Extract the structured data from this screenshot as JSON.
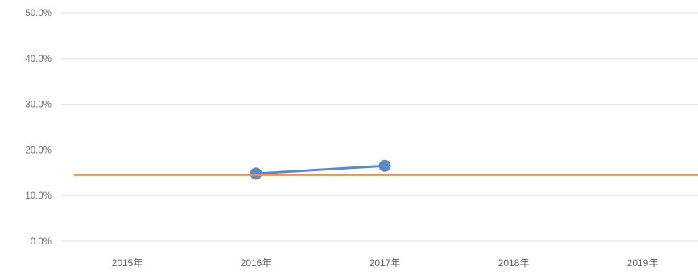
{
  "chart_data": {
    "type": "line",
    "title": "",
    "xlabel": "",
    "ylabel": "",
    "categories": [
      "2015年",
      "2016年",
      "2017年",
      "2018年",
      "2019年"
    ],
    "y_ticks": [
      "0.0%",
      "10.0%",
      "20.0%",
      "30.0%",
      "40.0%",
      "50.0%"
    ],
    "ylim": [
      0,
      50
    ],
    "grid": true,
    "legend": "none",
    "series": [
      {
        "values": [
          null,
          14.8,
          16.5,
          null,
          null
        ],
        "color": "#5b8ac6",
        "markers": true
      },
      {
        "values": [
          14.5,
          14.5,
          14.5,
          14.5,
          14.5
        ],
        "color": "#e0965a",
        "markers": false,
        "style": "reference-line"
      }
    ]
  }
}
